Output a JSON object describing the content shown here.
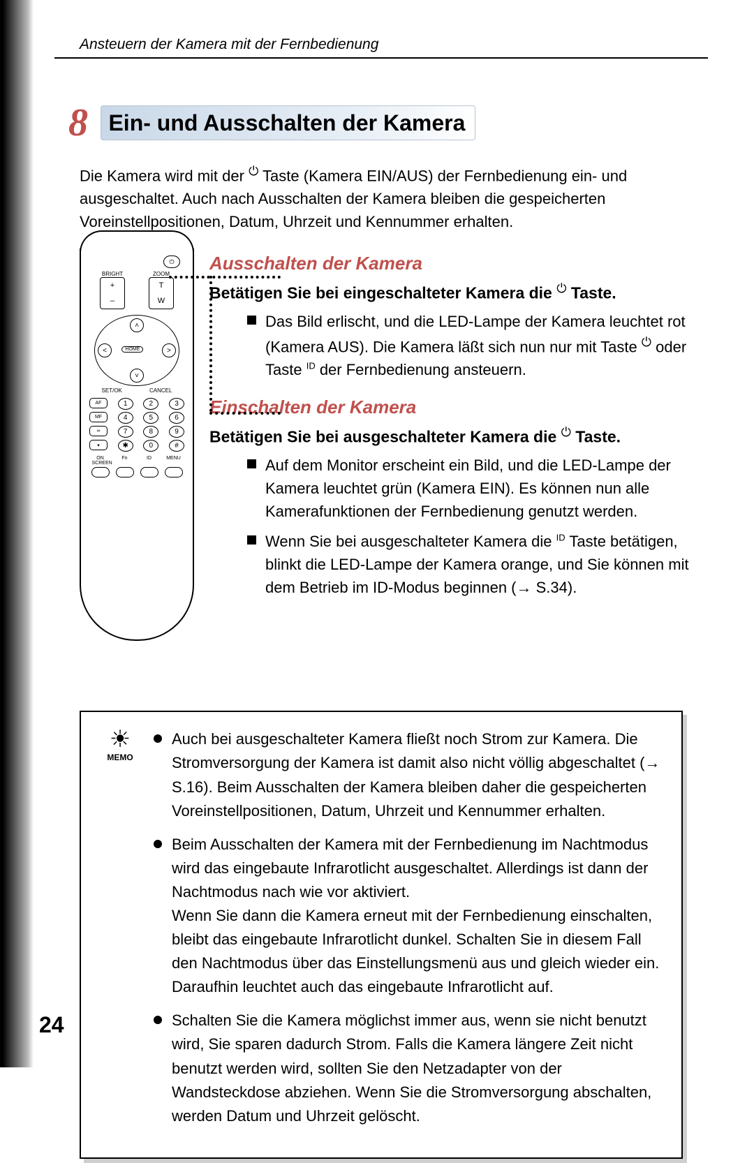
{
  "header": {
    "running": "Ansteuern der Kamera mit der Fernbedienung"
  },
  "chapter": {
    "num": "8",
    "title": "Ein- und Ausschalten der Kamera"
  },
  "intro": {
    "t1": "Die Kamera wird mit der ",
    "t2": " Taste (Kamera EIN/AUS) der Fernbedienung ein- und ausgeschaltet. Auch nach Ausschalten der Kamera bleiben die gespeicherten Voreinstellpositionen, Datum, Uhrzeit und Kennummer erhalten."
  },
  "remote": {
    "bright": "BRIGHT",
    "zoom": "ZOOM",
    "plus": "+",
    "minus": "–",
    "t": "T",
    "w": "W",
    "home": "HOME",
    "setok": "SET/OK",
    "cancel": "CANCEL",
    "af": "AF",
    "mf": "MF",
    "k1": "1",
    "k2": "2",
    "k3": "3",
    "k4": "4",
    "k5": "5",
    "k6": "6",
    "k7": "7",
    "k8": "8",
    "k9": "9",
    "k0": "0",
    "ks": "✱",
    "kh": "#",
    "onscreen": "ON SCREEN",
    "fn": "Fn",
    "id": "ID",
    "menu": "MENU"
  },
  "sec1": {
    "h": "Ausschalten der Kamera",
    "step_a": "Betätigen Sie bei eingeschalteter Kamera die ",
    "step_b": " Taste.",
    "b1_a": "Das Bild erlischt, und die LED-Lampe der Kamera leuchtet rot (Kamera AUS). Die Kamera läßt sich nun nur mit Taste ",
    "b1_b": " oder Taste ",
    "b1_c": " der Fernbedienung ansteuern."
  },
  "sec2": {
    "h": "Einschalten der Kamera",
    "step_a": "Betätigen Sie bei ausgeschalteter Kamera die ",
    "step_b": " Taste.",
    "b1": "Auf dem Monitor erscheint ein Bild, und die LED-Lampe der Kamera leuchtet grün (Kamera EIN). Es können nun alle Kamerafunktionen der Fernbedienung genutzt werden.",
    "b2_a": "Wenn Sie bei ausgeschalteter Kamera die ",
    "b2_b": " Taste betätigen, blinkt die LED-Lampe der Kamera orange, und Sie können mit dem Betrieb im ID-Modus beginnen (→ S.34)."
  },
  "memo": {
    "label": "MEMO",
    "m1": "Auch bei ausgeschalteter Kamera fließt noch Strom zur Kamera. Die Stromversorgung der Kamera ist damit also nicht völlig abgeschaltet (→ S.16). Beim Ausschalten der Kamera bleiben daher die gespeicherten Voreinstellpositionen, Datum, Uhrzeit und Kennummer erhalten.",
    "m2": "Beim Ausschalten der Kamera mit der Fernbedienung im Nachtmodus wird das eingebaute Infrarotlicht ausgeschaltet. Allerdings ist dann der Nachtmodus nach wie vor aktiviert.\nWenn Sie dann die Kamera erneut mit der Fernbedienung einschalten, bleibt das eingebaute Infrarotlicht dunkel. Schalten Sie in diesem Fall den Nachtmodus über das Einstellungsmenü aus und gleich wieder ein. Daraufhin leuchtet auch das eingebaute Infrarotlicht auf.",
    "m3": "Schalten Sie die Kamera möglichst immer aus, wenn sie nicht benutzt wird, Sie sparen dadurch Strom. Falls die Kamera längere Zeit nicht benutzt werden wird, sollten Sie den Netzadapter von der Wandsteckdose abziehen. Wenn Sie die Stromversorgung abschalten, werden Datum und Uhrzeit gelöscht."
  },
  "icons": {
    "power": "⏻",
    "id": "ID",
    "sun": "☀"
  },
  "pagenum": "24",
  "colors": {
    "accent": "#c0504d",
    "grad1": "#c9d8e8"
  }
}
